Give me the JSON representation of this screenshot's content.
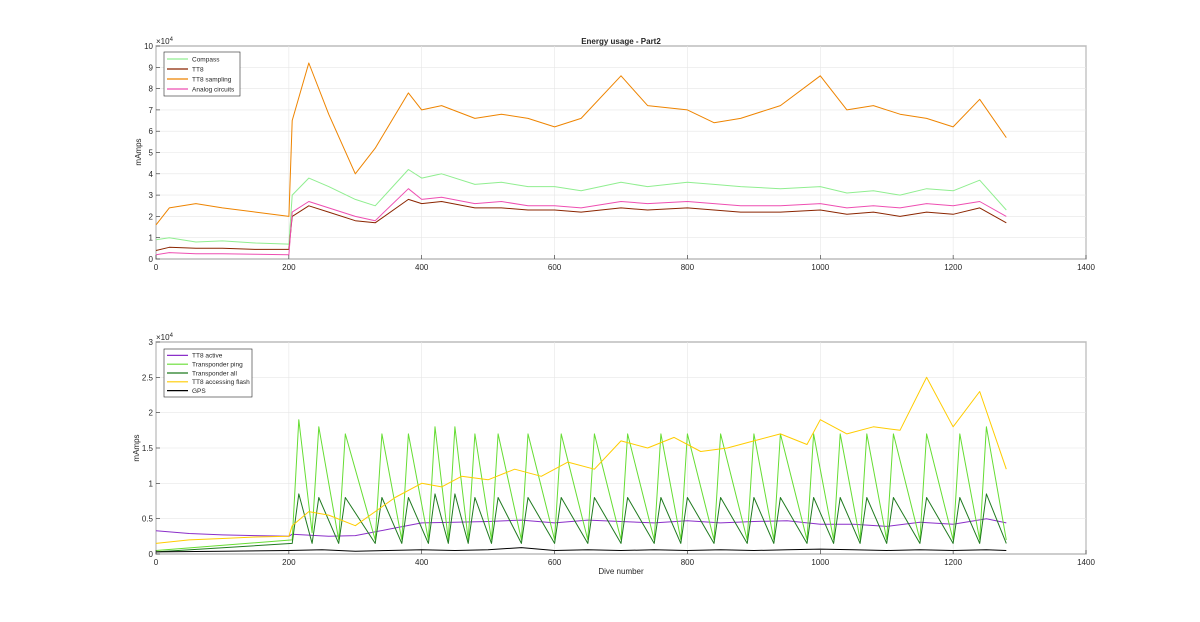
{
  "chart_data": [
    {
      "type": "line",
      "title": "Energy usage - Part2",
      "xlabel": "",
      "ylabel": "mAmps",
      "xlim": [
        0,
        1400
      ],
      "ylim": [
        0,
        100000
      ],
      "xticks": [
        0,
        200,
        400,
        600,
        800,
        1000,
        1200,
        1400
      ],
      "yticks": [
        0,
        1,
        2,
        3,
        4,
        5,
        6,
        7,
        8,
        9,
        10
      ],
      "y_exponent_label": "×10",
      "y_exponent_power": "4",
      "grid": true,
      "legend_position": "top-left",
      "series": [
        {
          "name": "Compass",
          "color": "#90ee90",
          "x": [
            0,
            20,
            60,
            100,
            150,
            200,
            205,
            230,
            260,
            300,
            330,
            380,
            400,
            430,
            480,
            520,
            560,
            600,
            640,
            700,
            740,
            800,
            840,
            880,
            940,
            1000,
            1040,
            1080,
            1120,
            1160,
            1200,
            1240,
            1280
          ],
          "values": [
            9000,
            10000,
            8000,
            8500,
            7500,
            7000,
            30000,
            38000,
            34000,
            28000,
            25000,
            42000,
            38000,
            40000,
            35000,
            36000,
            34000,
            34000,
            32000,
            36000,
            34000,
            36000,
            35000,
            34000,
            33000,
            34000,
            31000,
            32000,
            30000,
            33000,
            32000,
            37000,
            23000
          ]
        },
        {
          "name": "TT8",
          "color": "#8b2500",
          "x": [
            0,
            20,
            60,
            100,
            150,
            200,
            205,
            230,
            260,
            300,
            330,
            380,
            400,
            430,
            480,
            520,
            560,
            600,
            640,
            700,
            740,
            800,
            840,
            880,
            940,
            1000,
            1040,
            1080,
            1120,
            1160,
            1200,
            1240,
            1280
          ],
          "values": [
            4000,
            5500,
            5000,
            5000,
            4500,
            4500,
            20000,
            25000,
            22000,
            18000,
            17000,
            28000,
            26000,
            27000,
            24000,
            24000,
            23000,
            23000,
            22000,
            24000,
            23000,
            24000,
            23000,
            22000,
            22000,
            23000,
            21000,
            22000,
            20000,
            22000,
            21000,
            24000,
            17000
          ]
        },
        {
          "name": "TT8 sampling",
          "color": "#ee8400",
          "x": [
            0,
            20,
            60,
            100,
            150,
            200,
            205,
            230,
            260,
            300,
            330,
            380,
            400,
            430,
            480,
            520,
            560,
            600,
            640,
            700,
            740,
            800,
            840,
            880,
            940,
            1000,
            1040,
            1080,
            1120,
            1160,
            1200,
            1240,
            1280
          ],
          "values": [
            16000,
            24000,
            26000,
            24000,
            22000,
            20000,
            65000,
            92000,
            68000,
            40000,
            52000,
            78000,
            70000,
            72000,
            66000,
            68000,
            66000,
            62000,
            66000,
            86000,
            72000,
            70000,
            64000,
            66000,
            72000,
            86000,
            70000,
            72000,
            68000,
            66000,
            62000,
            75000,
            57000
          ]
        },
        {
          "name": "Analog circuits",
          "color": "#ee4fb2",
          "x": [
            0,
            20,
            60,
            100,
            150,
            200,
            205,
            230,
            260,
            300,
            330,
            380,
            400,
            430,
            480,
            520,
            560,
            600,
            640,
            700,
            740,
            800,
            840,
            880,
            940,
            1000,
            1040,
            1080,
            1120,
            1160,
            1200,
            1240,
            1280
          ],
          "values": [
            2000,
            3000,
            2500,
            2500,
            2200,
            2000,
            22000,
            27000,
            24000,
            20000,
            18000,
            33000,
            28000,
            29000,
            26000,
            27000,
            25000,
            25000,
            24000,
            27000,
            26000,
            27000,
            26000,
            25000,
            25000,
            26000,
            24000,
            25000,
            24000,
            26000,
            25000,
            27000,
            20000
          ]
        }
      ]
    },
    {
      "type": "line",
      "title": "",
      "xlabel": "Dive number",
      "ylabel": "mAmps",
      "xlim": [
        0,
        1400
      ],
      "ylim": [
        0,
        30000
      ],
      "xticks": [
        0,
        200,
        400,
        600,
        800,
        1000,
        1200,
        1400
      ],
      "yticks": [
        "0",
        "0.5",
        "1",
        "1.5",
        "2",
        "2.5",
        "3"
      ],
      "y_exponent_label": "×10",
      "y_exponent_power": "4",
      "grid": true,
      "legend_position": "top-left",
      "series": [
        {
          "name": "TT8 active",
          "color": "#8b2fc9",
          "x": [
            0,
            50,
            100,
            150,
            200,
            205,
            260,
            300,
            350,
            400,
            450,
            500,
            550,
            600,
            650,
            700,
            750,
            800,
            850,
            900,
            950,
            1000,
            1050,
            1100,
            1150,
            1200,
            1250,
            1280
          ],
          "values": [
            3300,
            2900,
            2700,
            2600,
            2500,
            2800,
            2500,
            2600,
            3500,
            4400,
            4500,
            4600,
            4800,
            4400,
            4800,
            4600,
            4400,
            4700,
            4400,
            4600,
            4700,
            4200,
            4200,
            3900,
            4500,
            4200,
            5000,
            4400
          ]
        },
        {
          "name": "Transponder ping",
          "color": "#66dd33",
          "x": [
            0,
            205,
            215,
            235,
            245,
            275,
            285,
            330,
            340,
            370,
            380,
            410,
            420,
            440,
            450,
            470,
            480,
            505,
            515,
            550,
            560,
            600,
            610,
            650,
            660,
            700,
            710,
            750,
            760,
            790,
            800,
            840,
            850,
            890,
            900,
            930,
            940,
            980,
            990,
            1020,
            1030,
            1060,
            1070,
            1100,
            1110,
            1150,
            1160,
            1200,
            1210,
            1240,
            1250,
            1280
          ],
          "values": [
            500,
            2000,
            19000,
            3000,
            18000,
            2000,
            17000,
            2000,
            17000,
            2000,
            17000,
            2000,
            18000,
            2000,
            18000,
            2000,
            17000,
            2000,
            17000,
            2000,
            17000,
            2000,
            17000,
            2000,
            17000,
            2000,
            17000,
            2000,
            17000,
            2000,
            17000,
            2000,
            17000,
            2000,
            17000,
            2000,
            17000,
            2000,
            17000,
            2000,
            17000,
            2000,
            17000,
            2000,
            17000,
            2000,
            17000,
            2000,
            17000,
            2000,
            18000,
            2000
          ]
        },
        {
          "name": "Transponder all",
          "color": "#1f7a1f",
          "x": [
            0,
            205,
            215,
            235,
            245,
            275,
            285,
            330,
            340,
            370,
            380,
            410,
            420,
            440,
            450,
            470,
            480,
            505,
            515,
            550,
            560,
            600,
            610,
            650,
            660,
            700,
            710,
            750,
            760,
            790,
            800,
            840,
            850,
            890,
            900,
            930,
            940,
            980,
            990,
            1020,
            1030,
            1060,
            1070,
            1100,
            1110,
            1150,
            1160,
            1200,
            1210,
            1240,
            1250,
            1280
          ],
          "values": [
            300,
            1500,
            8500,
            1500,
            8000,
            1500,
            8000,
            1500,
            8000,
            1500,
            8000,
            1500,
            8500,
            1500,
            8500,
            1500,
            8000,
            1500,
            8000,
            1500,
            8000,
            1500,
            8000,
            1500,
            8000,
            1500,
            8000,
            1500,
            8000,
            1500,
            8000,
            1500,
            8000,
            1500,
            8000,
            1500,
            8000,
            1500,
            8000,
            1500,
            8000,
            1500,
            8000,
            1500,
            8000,
            1500,
            8000,
            1500,
            8000,
            1500,
            8500,
            1500
          ]
        },
        {
          "name": "TT8 accessing flash",
          "color": "#ffcc00",
          "x": [
            0,
            50,
            100,
            150,
            200,
            205,
            230,
            260,
            300,
            330,
            360,
            400,
            430,
            460,
            500,
            540,
            580,
            620,
            660,
            700,
            740,
            780,
            820,
            860,
            900,
            940,
            980,
            1000,
            1040,
            1080,
            1120,
            1160,
            1200,
            1240,
            1280
          ],
          "values": [
            1500,
            2000,
            2200,
            2400,
            2500,
            4000,
            6000,
            5500,
            4000,
            6000,
            8000,
            10000,
            9500,
            11000,
            10500,
            12000,
            11000,
            13000,
            12000,
            16000,
            15000,
            16500,
            14500,
            15000,
            16000,
            17000,
            15500,
            19000,
            17000,
            18000,
            17500,
            25000,
            18000,
            23000,
            12000
          ]
        },
        {
          "name": "GPS",
          "color": "#000000",
          "x": [
            0,
            100,
            200,
            250,
            300,
            350,
            400,
            450,
            500,
            550,
            600,
            650,
            700,
            750,
            800,
            850,
            900,
            950,
            1000,
            1050,
            1100,
            1150,
            1200,
            1250,
            1280
          ],
          "values": [
            300,
            400,
            500,
            600,
            400,
            500,
            600,
            500,
            600,
            900,
            500,
            600,
            500,
            600,
            500,
            600,
            500,
            600,
            700,
            600,
            500,
            600,
            500,
            600,
            500
          ]
        }
      ]
    }
  ]
}
